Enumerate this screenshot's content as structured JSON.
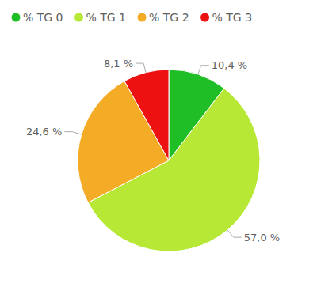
{
  "chart_data": {
    "type": "pie",
    "categories": [
      "% TG 0",
      "% TG 1",
      "% TG 2",
      "% TG 3"
    ],
    "values": [
      10.4,
      57.0,
      24.6,
      8.1
    ],
    "value_labels": [
      "10,4 %",
      "57,0 %",
      "24,6 %",
      "8,1 %"
    ],
    "colors": [
      "#1fbd26",
      "#b6e835",
      "#f4ac27",
      "#ee1111"
    ],
    "data_labels": true,
    "legend": "top"
  }
}
